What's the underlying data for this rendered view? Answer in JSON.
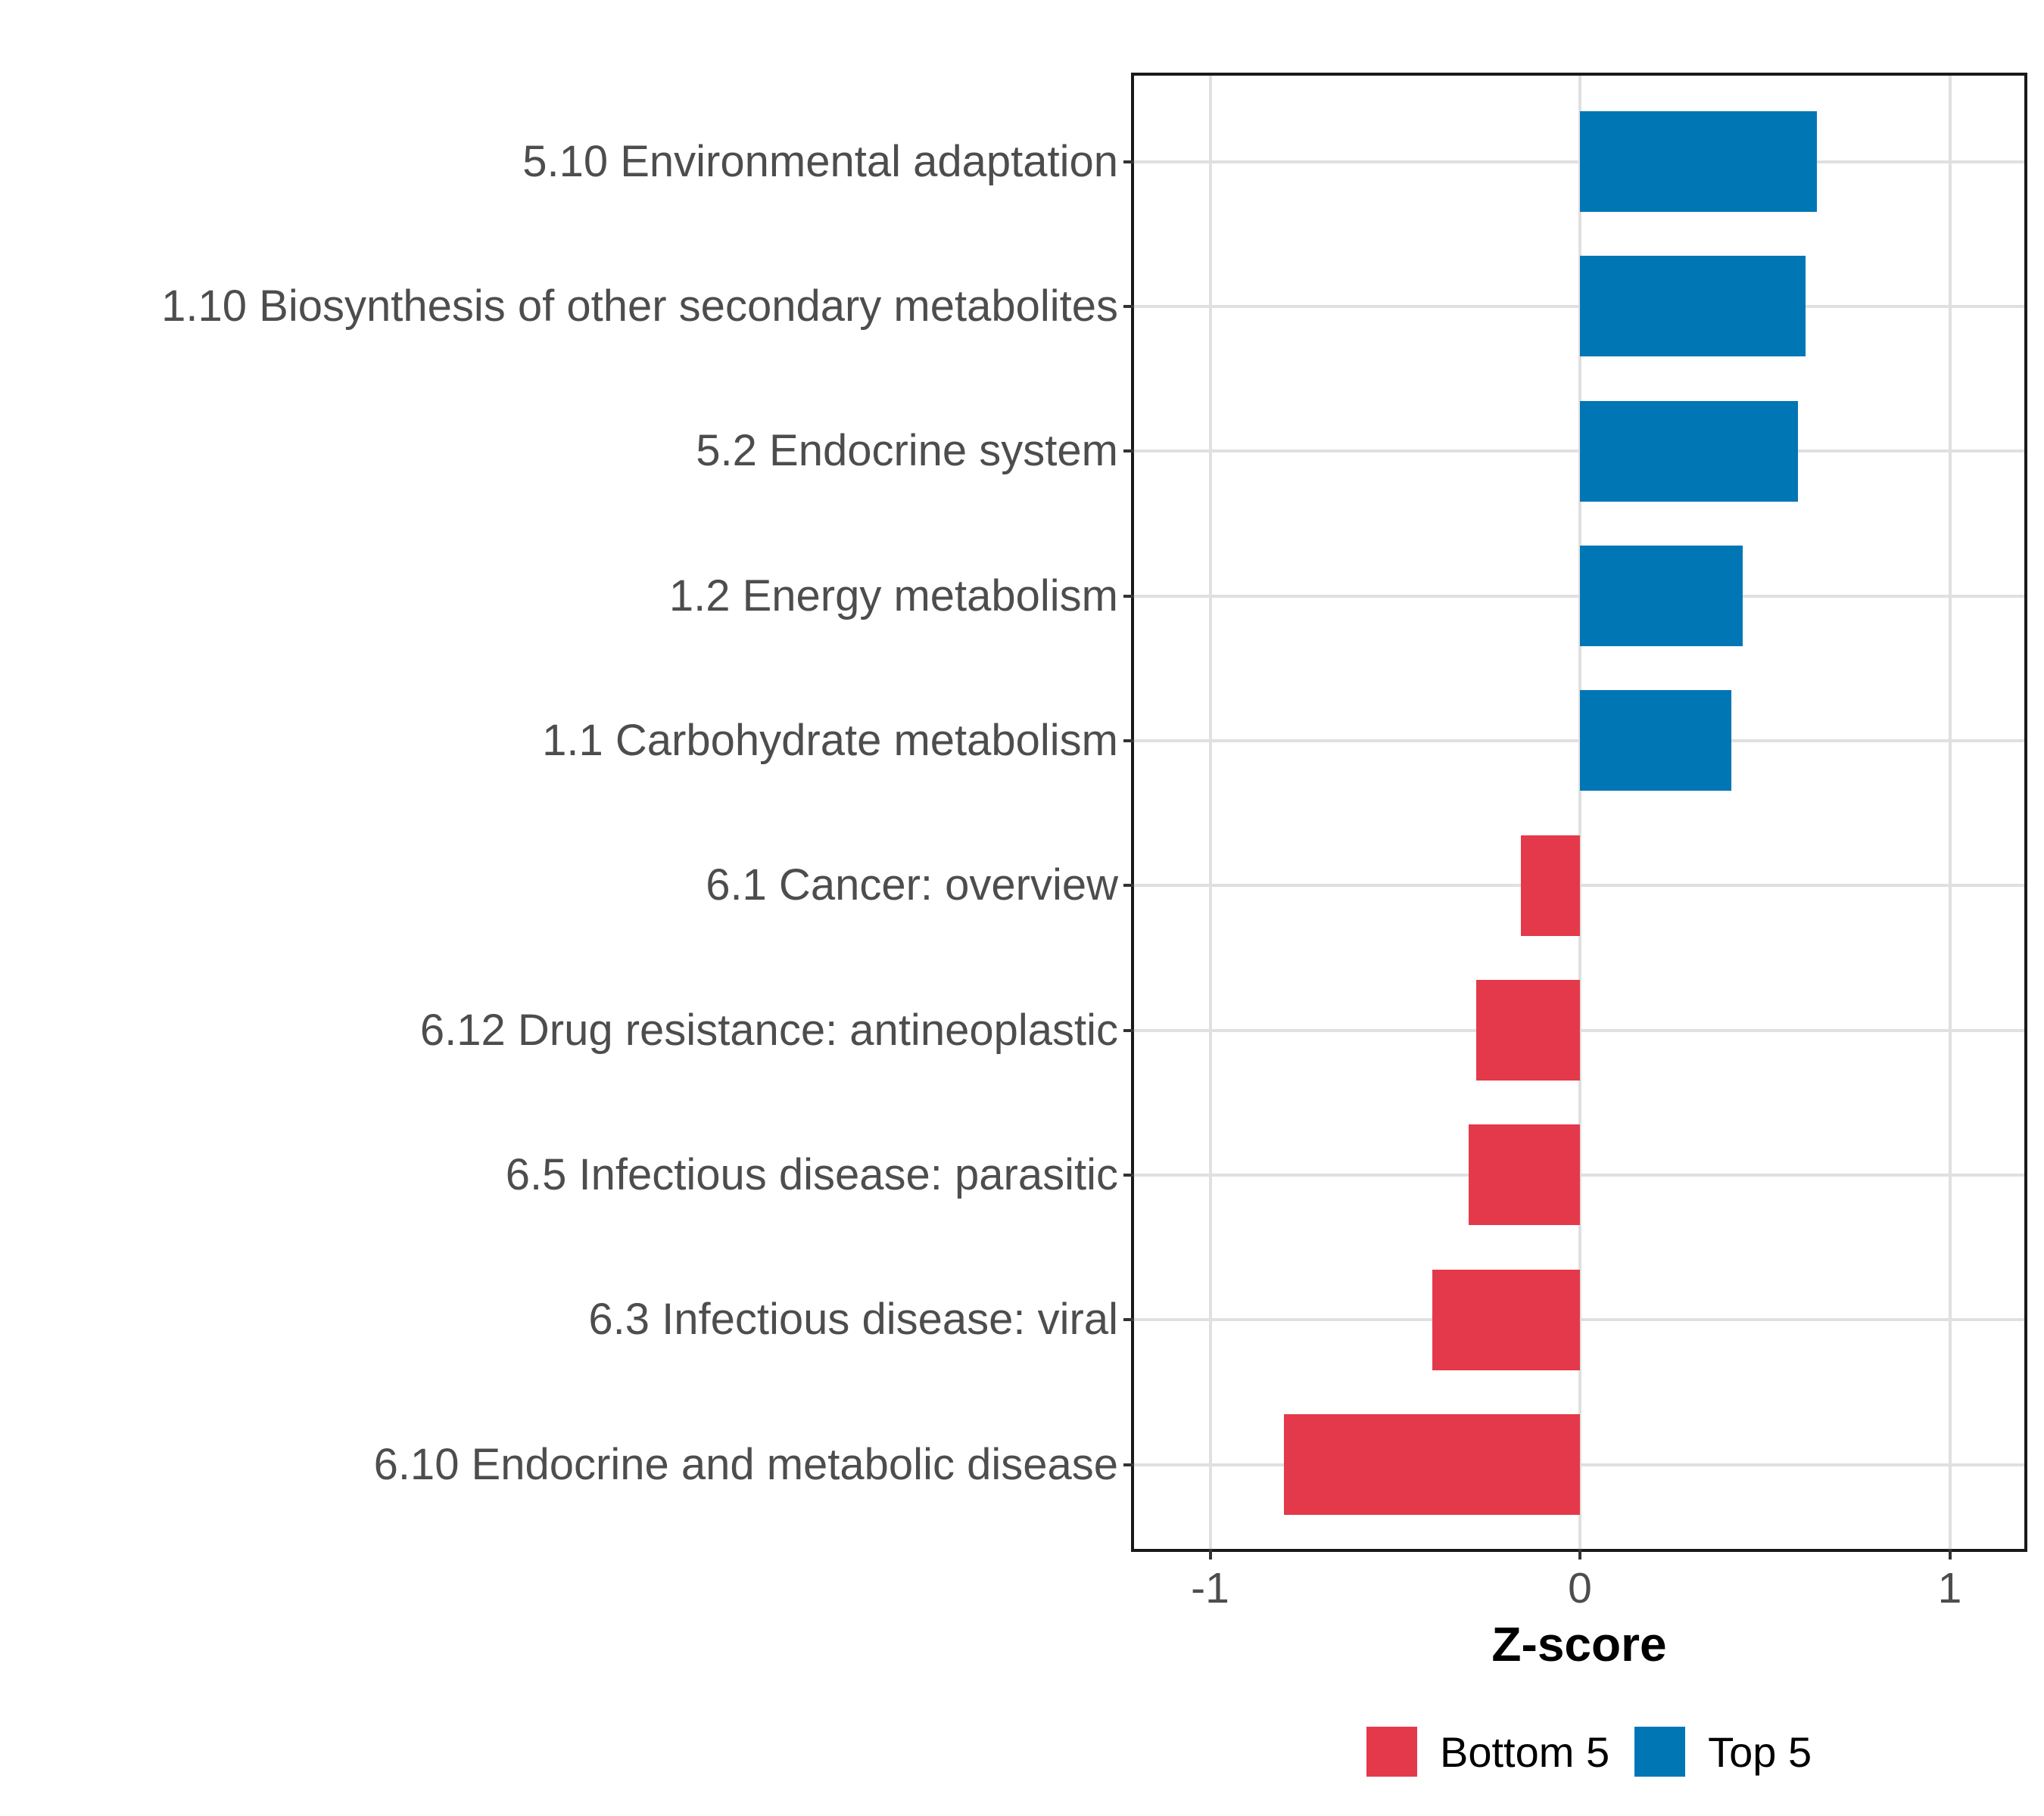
{
  "chart_data": {
    "type": "bar",
    "orientation": "horizontal",
    "title": "",
    "xlabel": "Z-score",
    "ylabel": "",
    "categories": [
      "5.10 Environmental adaptation",
      "1.10 Biosynthesis of other secondary metabolites",
      "5.2 Endocrine system",
      "1.2 Energy metabolism",
      "1.1 Carbohydrate metabolism",
      "6.1 Cancer: overview",
      "6.12 Drug resistance: antineoplastic",
      "6.5 Infectious disease: parasitic",
      "6.3 Infectious disease: viral",
      "6.10 Endocrine and metabolic disease"
    ],
    "values": [
      0.64,
      0.61,
      0.59,
      0.44,
      0.41,
      -0.16,
      -0.28,
      -0.3,
      -0.4,
      -0.8
    ],
    "groups": [
      "Top 5",
      "Top 5",
      "Top 5",
      "Top 5",
      "Top 5",
      "Bottom 5",
      "Bottom 5",
      "Bottom 5",
      "Bottom 5",
      "Bottom 5"
    ],
    "xticks": [
      -1,
      0,
      1
    ],
    "xtick_labels": [
      "-1",
      "0",
      "1"
    ],
    "xlim": [
      -1.2,
      1.2
    ],
    "grid": true,
    "bar_width_fraction": 0.7,
    "legend": {
      "position": "bottom",
      "entries": [
        {
          "label": "Bottom 5",
          "color": "#E4394A"
        },
        {
          "label": "Top 5",
          "color": "#0176B5"
        }
      ]
    },
    "colors": {
      "top5_bar": "#0176B5",
      "bottom5_bar": "#E4394A",
      "axis_text": "#4D4D4D",
      "panel_border": "#1A1A1A",
      "gridline": "#E0E0E0"
    }
  }
}
